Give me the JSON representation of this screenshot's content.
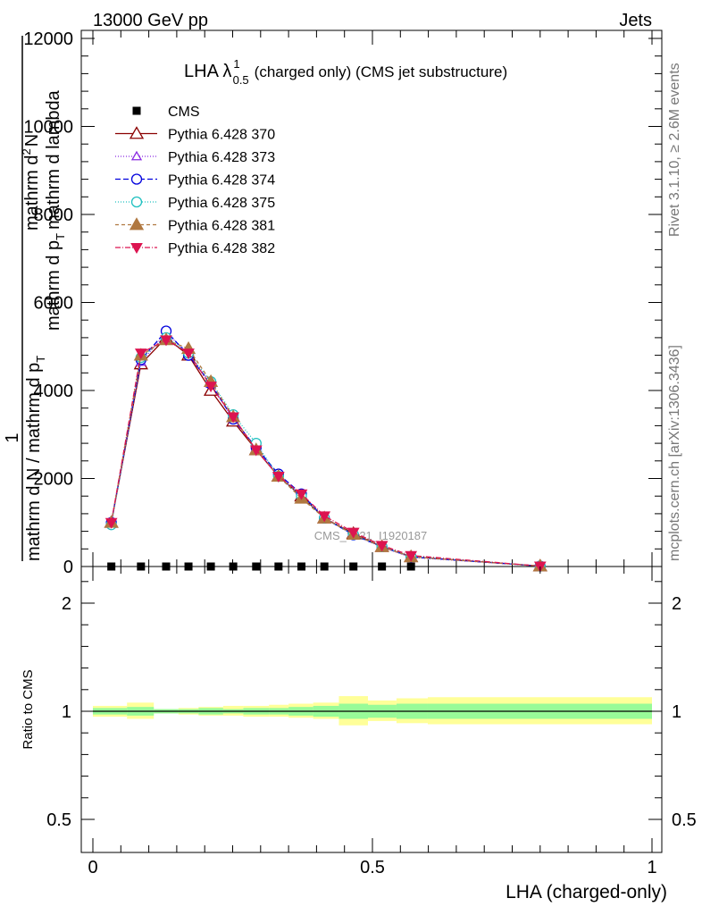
{
  "header": {
    "left": "13000 GeV pp",
    "right": "Jets"
  },
  "side": {
    "rivet": "Rivet 3.1.10, ≥ 2.6M events",
    "mcplots": "mcplots.cern.ch [arXiv:1306.3436]"
  },
  "watermark": "CMS_2021_I1920187",
  "chart_data": [
    {
      "type": "line",
      "title_main": "LHA λ",
      "title_sup": "1",
      "title_sub": "0.5",
      "title_rest": "(charged only) (CMS jet substructure)",
      "ylabel_a": "1",
      "ylabel_b": "mathrm d N / mathrm d p",
      "ylabel_b_sub": "T",
      "ylabel_c": "mathrm d",
      "ylabel_c_sup": "2",
      "ylabel_c_rest": "N",
      "ylabel_d": "mathrm d p",
      "ylabel_d_sub": "T",
      "ylabel_d_rest": "mathrm d lambda",
      "xlim": [
        0,
        1
      ],
      "ylim": [
        0,
        12000
      ],
      "yticks": [
        0,
        2000,
        4000,
        6000,
        8000,
        10000,
        12000
      ],
      "ytick_labels": [
        "0",
        "2000",
        "4000",
        "6000",
        "8000",
        "10000",
        "12000"
      ],
      "x": [
        0.033,
        0.086,
        0.131,
        0.171,
        0.211,
        0.251,
        0.292,
        0.332,
        0.373,
        0.414,
        0.466,
        0.517,
        0.569,
        0.8
      ],
      "series": [
        {
          "name": "CMS",
          "marker": "square",
          "color": "#000000",
          "dash": "",
          "values": [
            0,
            0,
            0,
            0,
            0,
            0,
            0,
            0,
            0,
            0,
            0,
            0,
            0,
            0
          ]
        },
        {
          "name": "Pythia 6.428 370",
          "marker": "triangle-open",
          "color": "#8b0000",
          "dash": "",
          "values": [
            1000,
            4600,
            5200,
            4800,
            4000,
            3300,
            2650,
            2050,
            1600,
            1100,
            750,
            450,
            220,
            10
          ]
        },
        {
          "name": "Pythia 6.428 373",
          "marker": "triangle-open-small",
          "color": "#8a2be2",
          "dash": "1,2",
          "values": [
            1000,
            4650,
            5300,
            4850,
            4150,
            3350,
            2700,
            2050,
            1600,
            1100,
            720,
            440,
            210,
            10
          ]
        },
        {
          "name": "Pythia 6.428 374",
          "marker": "circle-open",
          "color": "#0000dd",
          "dash": "6,3",
          "values": [
            1000,
            4700,
            5350,
            4800,
            4150,
            3350,
            2700,
            2100,
            1650,
            1100,
            720,
            450,
            220,
            10
          ]
        },
        {
          "name": "Pythia 6.428 375",
          "marker": "circle-open-cyan",
          "color": "#20c0c0",
          "dash": "1,2",
          "values": [
            950,
            4750,
            5200,
            4850,
            4200,
            3450,
            2800,
            2050,
            1600,
            1100,
            730,
            450,
            230,
            10
          ]
        },
        {
          "name": "Pythia 6.428 381",
          "marker": "triangle-filled",
          "color": "#b07840",
          "dash": "4,3",
          "values": [
            1000,
            4800,
            5150,
            4950,
            4200,
            3400,
            2650,
            2050,
            1550,
            1100,
            730,
            450,
            220,
            10
          ]
        },
        {
          "name": "Pythia 6.428 382",
          "marker": "triangle-down-filled",
          "color": "#dc1450",
          "dash": "6,2,1,2",
          "values": [
            1000,
            4850,
            5150,
            4850,
            4100,
            3400,
            2650,
            2050,
            1650,
            1150,
            780,
            480,
            250,
            10
          ]
        }
      ]
    },
    {
      "type": "area",
      "ylabel": "Ratio to CMS",
      "xlabel": "LHA (charged-only)",
      "xlim": [
        0,
        1
      ],
      "ylim": [
        0.4,
        2.3
      ],
      "xticks": [
        0,
        0.5,
        1
      ],
      "xtick_labels": [
        "0",
        "0.5",
        "1"
      ],
      "yticks": [
        0.5,
        1,
        2
      ],
      "ytick_labels": [
        "0.5",
        "1",
        "2"
      ],
      "bin_edges": [
        0.0,
        0.061,
        0.109,
        0.153,
        0.189,
        0.233,
        0.269,
        0.315,
        0.35,
        0.394,
        0.44,
        0.492,
        0.543,
        0.599,
        1.0
      ],
      "band_inner": [
        [
          0.97,
          1.03
        ],
        [
          0.96,
          1.04
        ],
        [
          0.98,
          1.02
        ],
        [
          0.98,
          1.02
        ],
        [
          0.97,
          1.03
        ],
        [
          0.98,
          1.02
        ],
        [
          0.97,
          1.03
        ],
        [
          0.97,
          1.03
        ],
        [
          0.96,
          1.04
        ],
        [
          0.95,
          1.05
        ],
        [
          0.93,
          1.07
        ],
        [
          0.94,
          1.06
        ],
        [
          0.93,
          1.07
        ],
        [
          0.93,
          1.07
        ]
      ],
      "band_outer": [
        [
          0.95,
          1.05
        ],
        [
          0.93,
          1.08
        ],
        [
          0.98,
          1.02
        ],
        [
          0.97,
          1.03
        ],
        [
          0.96,
          1.04
        ],
        [
          0.96,
          1.05
        ],
        [
          0.95,
          1.05
        ],
        [
          0.95,
          1.06
        ],
        [
          0.94,
          1.07
        ],
        [
          0.93,
          1.08
        ],
        [
          0.87,
          1.14
        ],
        [
          0.91,
          1.1
        ],
        [
          0.89,
          1.12
        ],
        [
          0.88,
          1.13
        ]
      ],
      "colors": {
        "inner": "#98fb98",
        "outer": "#ffff99",
        "line": "#000000"
      }
    }
  ]
}
